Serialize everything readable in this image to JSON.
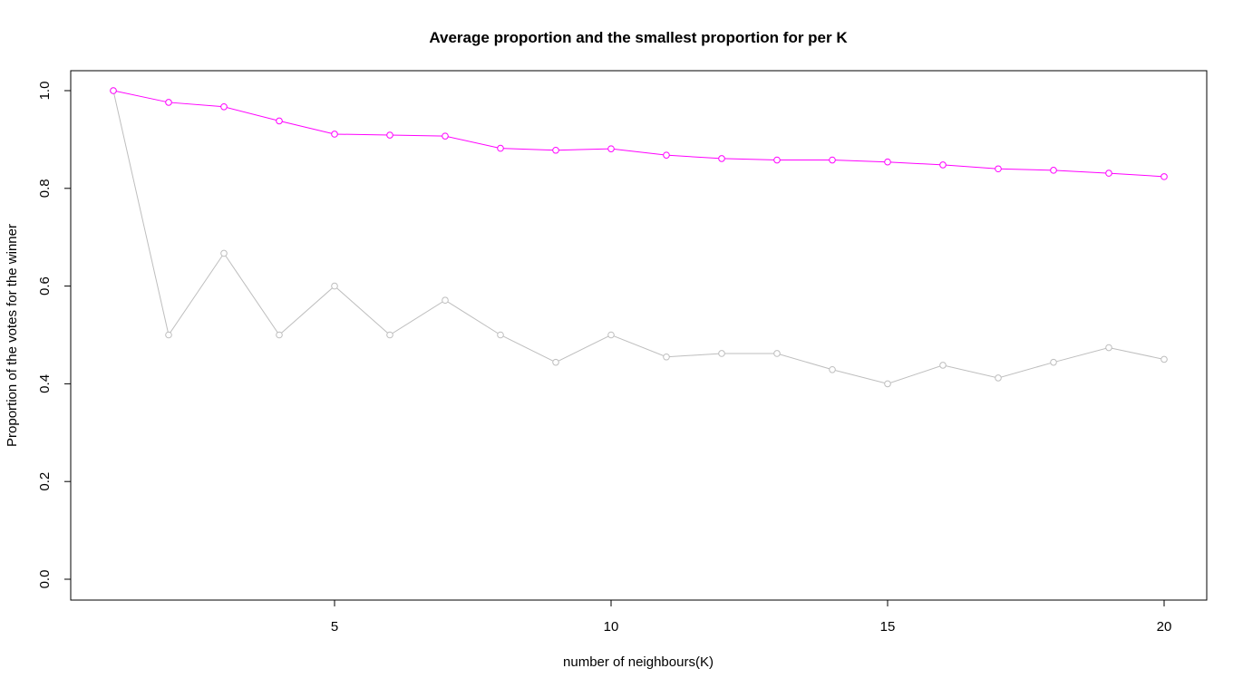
{
  "chart_data": {
    "type": "line",
    "title": "Average proportion and the smallest proportion for per K",
    "xlabel": "number of neighbours(K)",
    "ylabel": "Proportion of the votes for the winner",
    "xlim": [
      1,
      20
    ],
    "ylim": [
      0.0,
      1.0
    ],
    "xticks": [
      5,
      10,
      15,
      20
    ],
    "yticks": [
      0.0,
      0.2,
      0.4,
      0.6,
      0.8,
      1.0
    ],
    "xtick_labels": [
      "5",
      "10",
      "15",
      "20"
    ],
    "ytick_labels": [
      "0.0",
      "0.2",
      "0.4",
      "0.6",
      "0.8",
      "1.0"
    ],
    "grid": false,
    "x": [
      1,
      2,
      3,
      4,
      5,
      6,
      7,
      8,
      9,
      10,
      11,
      12,
      13,
      14,
      15,
      16,
      17,
      18,
      19,
      20
    ],
    "series": [
      {
        "color": "#ff00ff",
        "values": [
          1.0,
          0.976,
          0.967,
          0.938,
          0.911,
          0.909,
          0.907,
          0.882,
          0.878,
          0.881,
          0.868,
          0.861,
          0.858,
          0.858,
          0.854,
          0.848,
          0.84,
          0.837,
          0.831,
          0.824
        ]
      },
      {
        "color": "#bebebe",
        "values": [
          1.0,
          0.5,
          0.667,
          0.5,
          0.6,
          0.5,
          0.571,
          0.5,
          0.444,
          0.5,
          0.455,
          0.462,
          0.462,
          0.429,
          0.4,
          0.438,
          0.412,
          0.444,
          0.474,
          0.45
        ]
      }
    ]
  }
}
